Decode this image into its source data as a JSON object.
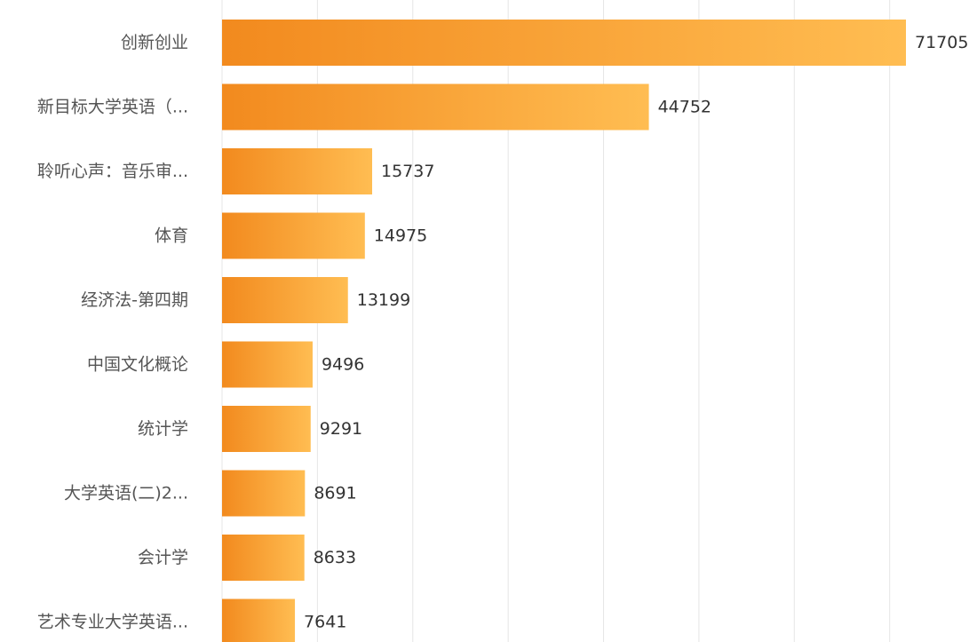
{
  "chart_data": {
    "type": "bar",
    "orientation": "horizontal",
    "categories": [
      "创新创业",
      "新目标大学英语（...",
      "聆听心声：音乐审...",
      "体育",
      "经济法-第四期",
      "中国文化概论",
      "统计学",
      "大学英语(二)2...",
      "会计学",
      "艺术专业大学英语..."
    ],
    "values": [
      71705,
      44752,
      15737,
      14975,
      13199,
      9496,
      9291,
      8691,
      8633,
      7641
    ],
    "value_labels": [
      "71705",
      "44752",
      "15737",
      "14975",
      "13199",
      "9496",
      "9291",
      "8691",
      "8633",
      "7641"
    ],
    "xlim": [
      0,
      80000
    ],
    "grid": true,
    "colors": {
      "bar_start": "#f28a1e",
      "bar_end": "#ffbd52",
      "grid": "#e6e6e6",
      "category_text": "#555555",
      "value_text": "#333333"
    }
  }
}
